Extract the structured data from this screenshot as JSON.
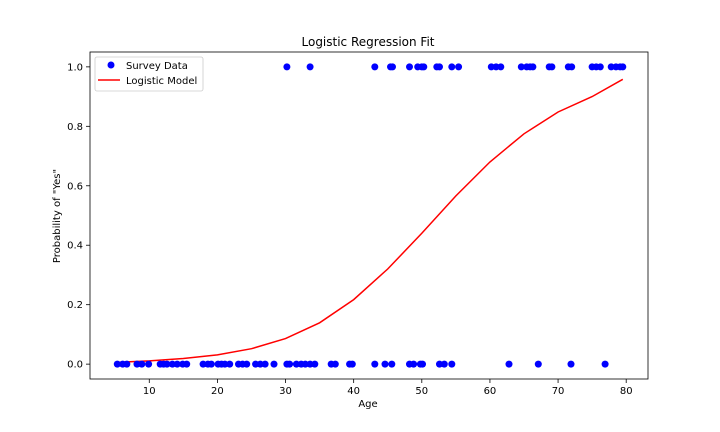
{
  "chart_data": {
    "type": "scatter",
    "title": "Logistic Regression Fit",
    "xlabel": "Age",
    "ylabel": "Probability of \"Yes\"",
    "xlim": [
      1.3,
      83.2
    ],
    "ylim": [
      -0.05,
      1.05
    ],
    "xticks": [
      10,
      20,
      30,
      40,
      50,
      60,
      70,
      80
    ],
    "yticks": [
      0.0,
      0.2,
      0.4,
      0.6,
      0.8,
      1.0
    ],
    "grid": false,
    "legend_position": "top-left",
    "series": [
      {
        "name": "Survey Data",
        "kind": "points",
        "color": "#0000ff",
        "points": [
          [
            5.3,
            0
          ],
          [
            6.1,
            0
          ],
          [
            6.7,
            0
          ],
          [
            8.2,
            0
          ],
          [
            8.9,
            0
          ],
          [
            9.9,
            0
          ],
          [
            11.6,
            0
          ],
          [
            12.1,
            0
          ],
          [
            12.6,
            0
          ],
          [
            13.4,
            0
          ],
          [
            14.1,
            0
          ],
          [
            14.9,
            0
          ],
          [
            15.5,
            0
          ],
          [
            17.9,
            0
          ],
          [
            18.6,
            0
          ],
          [
            19.1,
            0
          ],
          [
            20.1,
            0
          ],
          [
            20.6,
            0
          ],
          [
            21.1,
            0
          ],
          [
            21.8,
            0
          ],
          [
            23.1,
            0
          ],
          [
            23.7,
            0
          ],
          [
            24.3,
            0
          ],
          [
            25.6,
            0
          ],
          [
            26.3,
            0
          ],
          [
            27.0,
            0
          ],
          [
            28.3,
            0
          ],
          [
            30.2,
            0
          ],
          [
            30.6,
            0
          ],
          [
            31.6,
            0
          ],
          [
            32.3,
            0
          ],
          [
            32.9,
            0
          ],
          [
            33.6,
            0
          ],
          [
            34.3,
            0
          ],
          [
            36.7,
            0
          ],
          [
            37.3,
            0
          ],
          [
            39.4,
            0
          ],
          [
            39.8,
            0
          ],
          [
            43.1,
            0
          ],
          [
            44.6,
            0
          ],
          [
            45.6,
            0
          ],
          [
            48.2,
            0
          ],
          [
            48.8,
            0
          ],
          [
            49.8,
            0
          ],
          [
            50.1,
            0
          ],
          [
            52.6,
            0
          ],
          [
            53.3,
            0
          ],
          [
            54.4,
            0
          ],
          [
            62.8,
            0
          ],
          [
            67.1,
            0
          ],
          [
            71.9,
            0
          ],
          [
            76.9,
            0
          ],
          [
            30.2,
            1
          ],
          [
            33.6,
            1
          ],
          [
            43.1,
            1
          ],
          [
            45.4,
            1
          ],
          [
            45.7,
            1
          ],
          [
            48.2,
            1
          ],
          [
            49.4,
            1
          ],
          [
            50.0,
            1
          ],
          [
            50.3,
            1
          ],
          [
            52.2,
            1
          ],
          [
            52.6,
            1
          ],
          [
            54.4,
            1
          ],
          [
            55.4,
            1
          ],
          [
            60.2,
            1
          ],
          [
            60.9,
            1
          ],
          [
            61.6,
            1
          ],
          [
            64.6,
            1
          ],
          [
            65.4,
            1
          ],
          [
            65.9,
            1
          ],
          [
            66.3,
            1
          ],
          [
            68.7,
            1
          ],
          [
            69.1,
            1
          ],
          [
            71.5,
            1
          ],
          [
            72.0,
            1
          ],
          [
            75.0,
            1
          ],
          [
            75.6,
            1
          ],
          [
            76.2,
            1
          ],
          [
            77.8,
            1
          ],
          [
            78.5,
            1
          ],
          [
            79.1,
            1
          ],
          [
            79.5,
            1
          ]
        ]
      },
      {
        "name": "Logistic Model",
        "kind": "line",
        "color": "#ff0000",
        "x": [
          5,
          10,
          15,
          20,
          25,
          30,
          35,
          40,
          45,
          50,
          55,
          60,
          65,
          70,
          75,
          79.5
        ],
        "y": [
          0.006,
          0.011,
          0.019,
          0.031,
          0.052,
          0.086,
          0.139,
          0.217,
          0.32,
          0.44,
          0.566,
          0.68,
          0.775,
          0.848,
          0.9,
          0.958
        ]
      }
    ]
  }
}
